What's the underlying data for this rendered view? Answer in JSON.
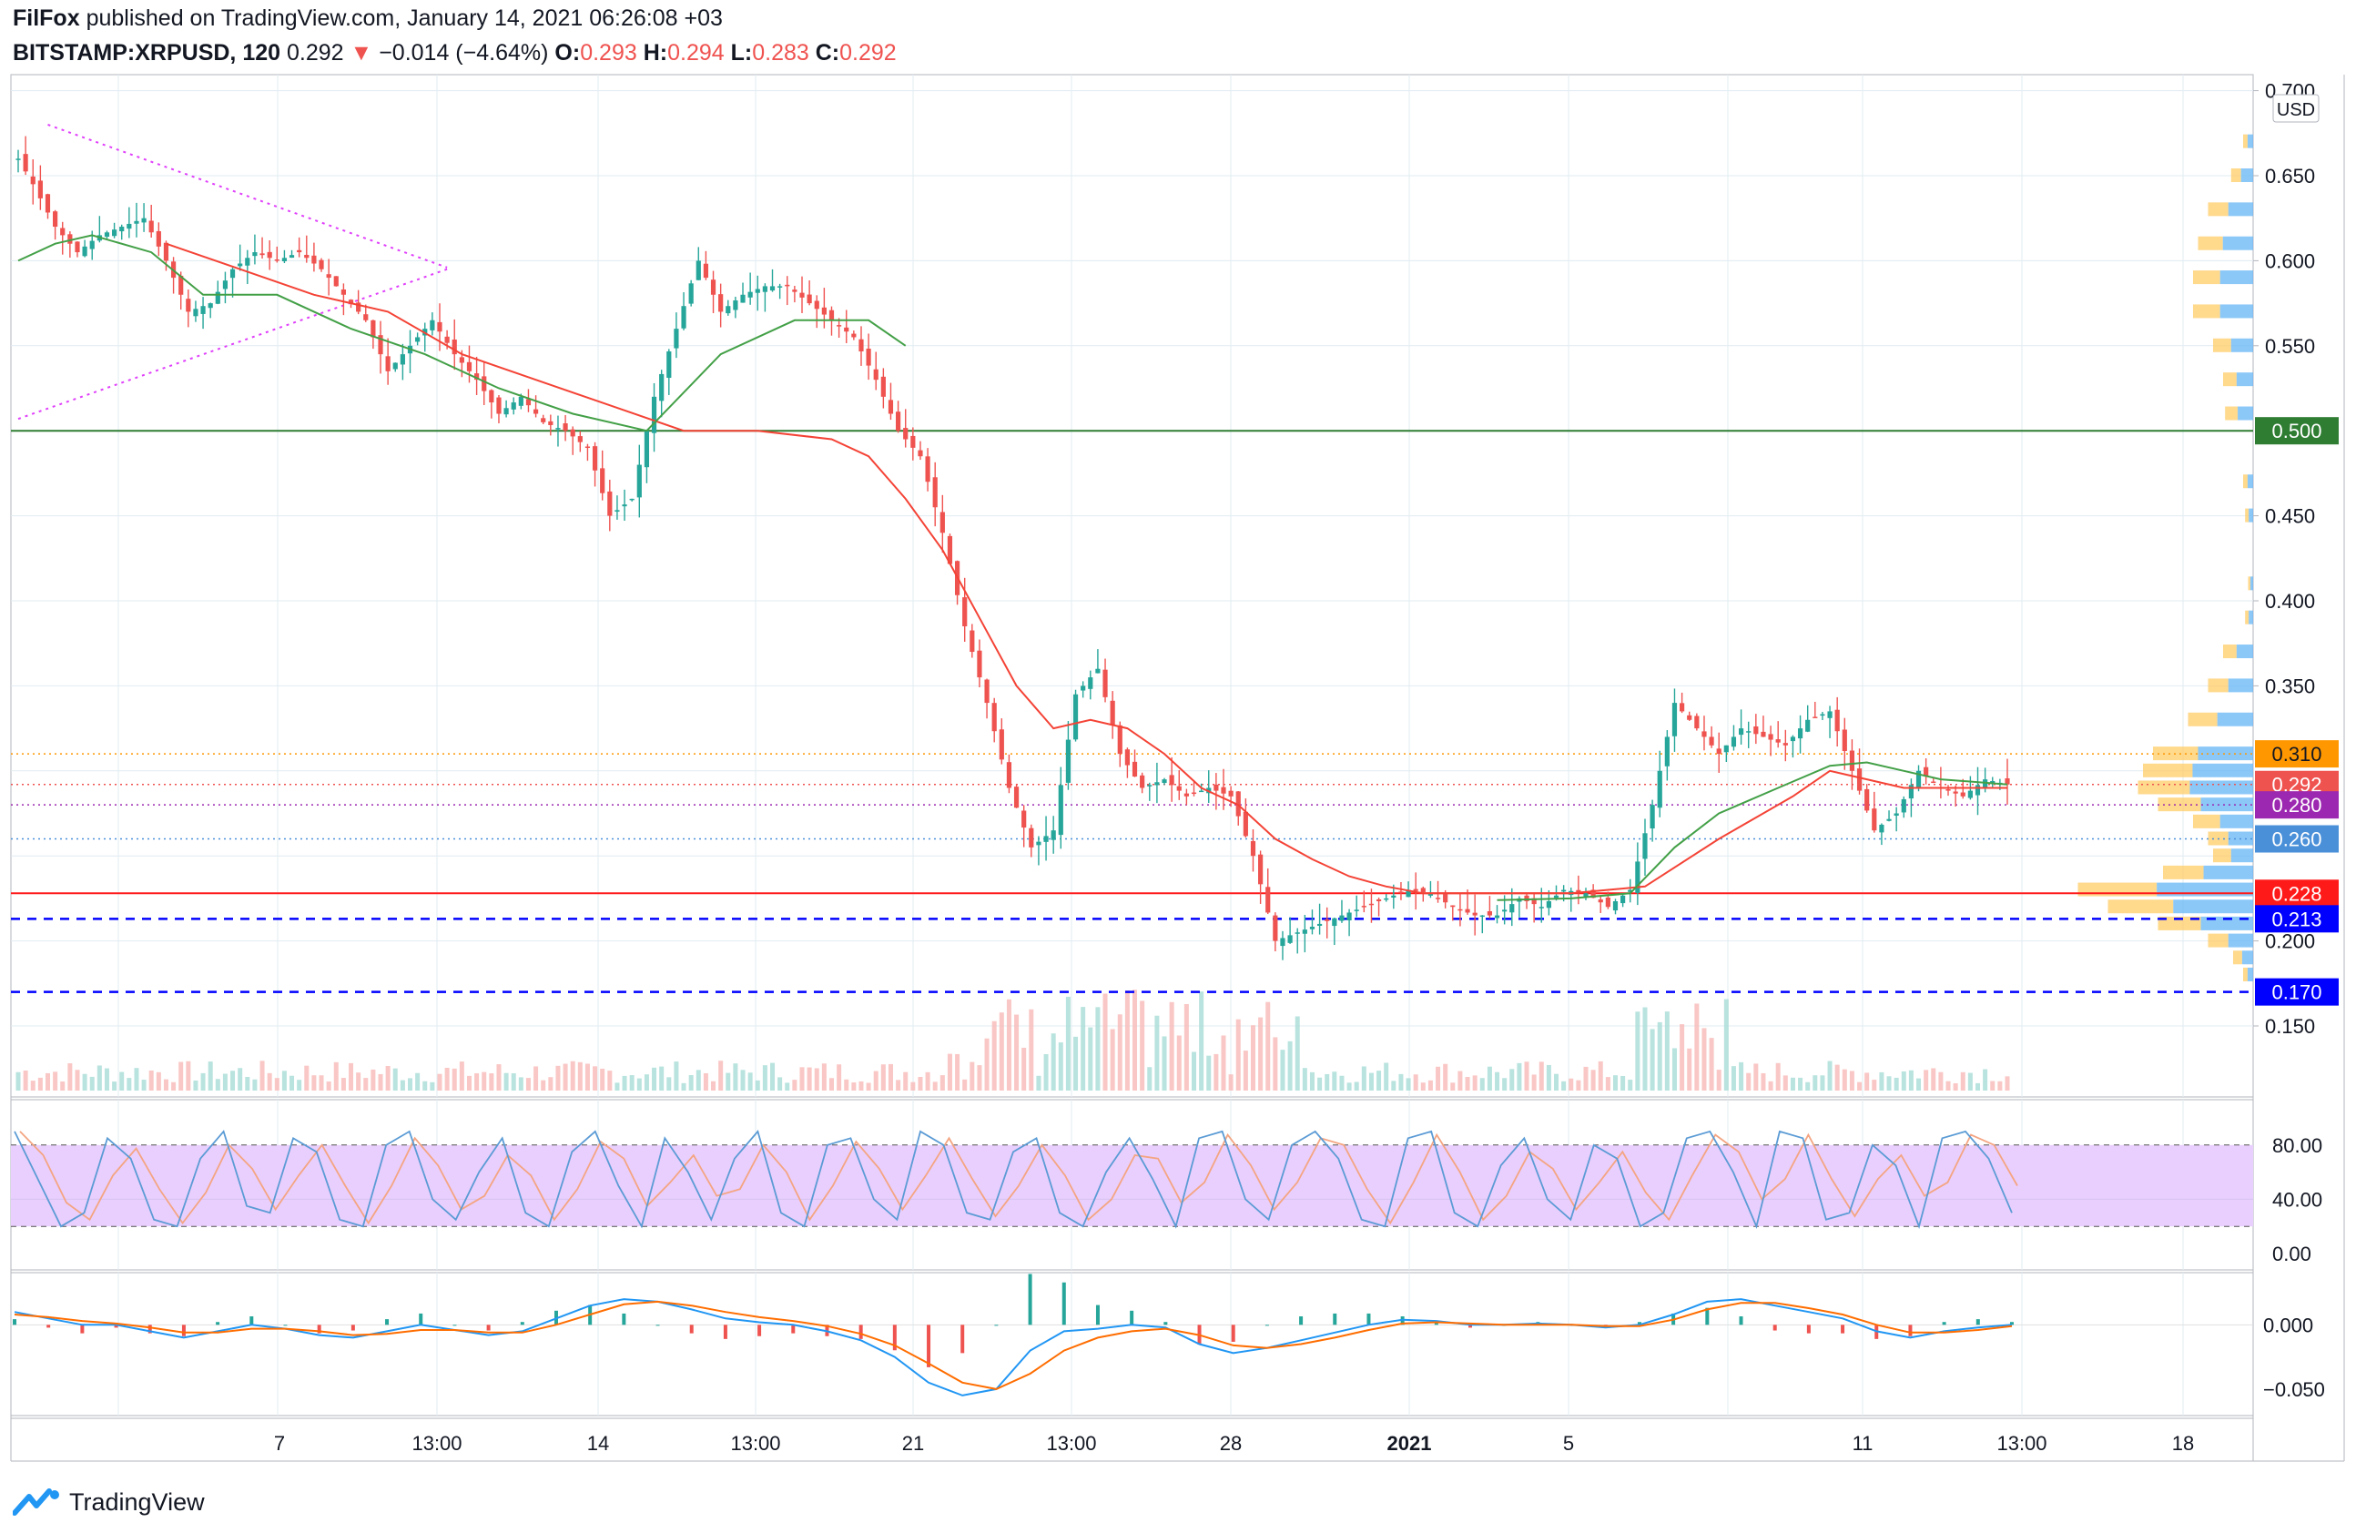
{
  "header": {
    "author": "FilFox",
    "published_text": "published on TradingView.com, January 14, 2021 06:26:08 +03",
    "symbol": "BITSTAMP:XRPUSD, 120",
    "last": "0.292",
    "arrow": "▼",
    "change": "−0.014 (−4.64%)",
    "o_label": "O:",
    "o_value": "0.293",
    "h_label": "H:",
    "h_value": "0.294",
    "l_label": "L:",
    "l_value": "0.283",
    "c_label": "C:",
    "c_value": "0.292"
  },
  "footer": {
    "brand": "TradingView",
    "logo_icon": "tradingview-logo-icon"
  },
  "chart_data": [
    {
      "type": "candlestick",
      "currency_label": "USD",
      "x_tick_labels": [
        "7",
        "13:00",
        "14",
        "13:00",
        "21",
        "13:00",
        "28",
        "2021",
        "5",
        "11",
        "13:00",
        "18"
      ],
      "y_ticks": [
        "0.700",
        "0.650",
        "0.600",
        "0.550",
        "0.450",
        "0.400",
        "0.350",
        "0.200",
        "0.150"
      ],
      "ylim": [
        0.1,
        0.7
      ],
      "price_labels": [
        {
          "text": "0.500",
          "value": 0.5,
          "color": "#2e7d32"
        },
        {
          "text": "0.310",
          "value": 0.31,
          "color": "#ff9800"
        },
        {
          "text": "0.292",
          "value": 0.292,
          "color": "#ef5350"
        },
        {
          "text": "0.280",
          "value": 0.28,
          "color": "#9c27b0"
        },
        {
          "text": "0.260",
          "value": 0.26,
          "color": "#4a90d9"
        },
        {
          "text": "0.228",
          "value": 0.228,
          "color": "#ff1a1a"
        },
        {
          "text": "0.213",
          "value": 0.213,
          "color": "#0000ff"
        },
        {
          "text": "0.170",
          "value": 0.17,
          "color": "#0000ff"
        }
      ],
      "close_path": [
        [
          0,
          0.66
        ],
        [
          2,
          0.645
        ],
        [
          5,
          0.62
        ],
        [
          8,
          0.605
        ],
        [
          11,
          0.615
        ],
        [
          14,
          0.62
        ],
        [
          17,
          0.625
        ],
        [
          20,
          0.6
        ],
        [
          23,
          0.57
        ],
        [
          26,
          0.575
        ],
        [
          29,
          0.595
        ],
        [
          32,
          0.605
        ],
        [
          35,
          0.6
        ],
        [
          38,
          0.605
        ],
        [
          41,
          0.595
        ],
        [
          44,
          0.58
        ],
        [
          47,
          0.565
        ],
        [
          50,
          0.535
        ],
        [
          53,
          0.55
        ],
        [
          56,
          0.565
        ],
        [
          59,
          0.545
        ],
        [
          62,
          0.53
        ],
        [
          65,
          0.51
        ],
        [
          68,
          0.52
        ],
        [
          71,
          0.505
        ],
        [
          74,
          0.5
        ],
        [
          77,
          0.49
        ],
        [
          80,
          0.45
        ],
        [
          83,
          0.46
        ],
        [
          86,
          0.52
        ],
        [
          89,
          0.56
        ],
        [
          92,
          0.6
        ],
        [
          95,
          0.57
        ],
        [
          98,
          0.58
        ],
        [
          101,
          0.585
        ],
        [
          104,
          0.585
        ],
        [
          107,
          0.575
        ],
        [
          110,
          0.565
        ],
        [
          113,
          0.555
        ],
        [
          116,
          0.53
        ],
        [
          119,
          0.5
        ],
        [
          122,
          0.485
        ],
        [
          125,
          0.44
        ],
        [
          128,
          0.385
        ],
        [
          131,
          0.34
        ],
        [
          134,
          0.29
        ],
        [
          137,
          0.255
        ],
        [
          140,
          0.265
        ],
        [
          143,
          0.345
        ],
        [
          146,
          0.36
        ],
        [
          149,
          0.31
        ],
        [
          152,
          0.29
        ],
        [
          155,
          0.295
        ],
        [
          158,
          0.285
        ],
        [
          161,
          0.29
        ],
        [
          164,
          0.285
        ],
        [
          167,
          0.25
        ],
        [
          170,
          0.2
        ],
        [
          173,
          0.205
        ],
        [
          176,
          0.21
        ],
        [
          179,
          0.215
        ],
        [
          182,
          0.22
        ],
        [
          185,
          0.225
        ],
        [
          188,
          0.23
        ],
        [
          191,
          0.228
        ],
        [
          194,
          0.22
        ],
        [
          197,
          0.215
        ],
        [
          200,
          0.215
        ],
        [
          203,
          0.225
        ],
        [
          206,
          0.22
        ],
        [
          209,
          0.23
        ],
        [
          212,
          0.228
        ],
        [
          215,
          0.22
        ],
        [
          218,
          0.23
        ],
        [
          221,
          0.28
        ],
        [
          224,
          0.34
        ],
        [
          227,
          0.325
        ],
        [
          230,
          0.31
        ],
        [
          233,
          0.325
        ],
        [
          236,
          0.32
        ],
        [
          239,
          0.315
        ],
        [
          242,
          0.33
        ],
        [
          245,
          0.335
        ],
        [
          248,
          0.3
        ],
        [
          251,
          0.265
        ],
        [
          254,
          0.275
        ],
        [
          257,
          0.3
        ],
        [
          260,
          0.29
        ],
        [
          263,
          0.285
        ],
        [
          266,
          0.295
        ],
        [
          269,
          0.292
        ]
      ],
      "ma_fast_path": [
        [
          0,
          0.605
        ],
        [
          10,
          0.615
        ],
        [
          20,
          0.61
        ],
        [
          30,
          0.595
        ],
        [
          40,
          0.585
        ],
        [
          50,
          0.57
        ],
        [
          60,
          0.55
        ],
        [
          70,
          0.52
        ],
        [
          80,
          0.5
        ],
        [
          90,
          0.53
        ],
        [
          100,
          0.555
        ],
        [
          110,
          0.565
        ],
        [
          120,
          0.545
        ],
        [
          130,
          0.48
        ]
      ],
      "ma_slow_path": [
        [
          20,
          0.61
        ],
        [
          30,
          0.595
        ],
        [
          40,
          0.58
        ],
        [
          50,
          0.57
        ],
        [
          60,
          0.545
        ],
        [
          70,
          0.53
        ],
        [
          80,
          0.515
        ],
        [
          90,
          0.5
        ],
        [
          100,
          0.5
        ],
        [
          110,
          0.495
        ],
        [
          115,
          0.485
        ],
        [
          120,
          0.46
        ],
        [
          125,
          0.43
        ],
        [
          130,
          0.39
        ],
        [
          135,
          0.35
        ],
        [
          140,
          0.325
        ],
        [
          145,
          0.33
        ],
        [
          150,
          0.325
        ],
        [
          155,
          0.31
        ],
        [
          160,
          0.29
        ],
        [
          165,
          0.28
        ],
        [
          170,
          0.26
        ],
        [
          175,
          0.248
        ],
        [
          180,
          0.238
        ],
        [
          185,
          0.232
        ],
        [
          190,
          0.228
        ],
        [
          200,
          0.228
        ],
        [
          210,
          0.228
        ],
        [
          220,
          0.232
        ],
        [
          230,
          0.26
        ],
        [
          240,
          0.285
        ],
        [
          245,
          0.3
        ],
        [
          250,
          0.295
        ],
        [
          255,
          0.29
        ],
        [
          260,
          0.29
        ],
        [
          269,
          0.29
        ]
      ],
      "ma_green_path": [
        [
          0,
          0.6
        ],
        [
          5,
          0.61
        ],
        [
          10,
          0.615
        ],
        [
          18,
          0.605
        ],
        [
          25,
          0.58
        ],
        [
          35,
          0.58
        ],
        [
          45,
          0.56
        ],
        [
          55,
          0.545
        ],
        [
          65,
          0.525
        ],
        [
          75,
          0.51
        ],
        [
          85,
          0.5
        ],
        [
          95,
          0.545
        ],
        [
          105,
          0.565
        ],
        [
          115,
          0.565
        ],
        [
          120,
          0.55
        ]
      ],
      "ma_green_late_path": [
        [
          200,
          0.224
        ],
        [
          210,
          0.225
        ],
        [
          218,
          0.228
        ],
        [
          224,
          0.255
        ],
        [
          230,
          0.275
        ],
        [
          238,
          0.29
        ],
        [
          245,
          0.303
        ],
        [
          250,
          0.305
        ],
        [
          255,
          0.3
        ],
        [
          260,
          0.295
        ],
        [
          269,
          0.292
        ]
      ],
      "trendline_upper": [
        [
          4,
          0.68
        ],
        [
          58,
          0.596
        ]
      ],
      "trendline_lower": [
        [
          0,
          0.507
        ],
        [
          58,
          0.595
        ]
      ],
      "hlines": [
        {
          "value": 0.5,
          "color": "#2e7d32",
          "style": "solid"
        },
        {
          "value": 0.31,
          "color": "#ff9800",
          "style": "dotted"
        },
        {
          "value": 0.292,
          "color": "#ef5350",
          "style": "dotted"
        },
        {
          "value": 0.28,
          "color": "#9c27b0",
          "style": "dotted"
        },
        {
          "value": 0.26,
          "color": "#4a90d9",
          "style": "dotted"
        },
        {
          "value": 0.228,
          "color": "#ff1a1a",
          "style": "solid"
        },
        {
          "value": 0.213,
          "color": "#0000ff",
          "style": "dashed"
        },
        {
          "value": 0.17,
          "color": "#0000ff",
          "style": "dashed"
        }
      ],
      "volume_profile": [
        [
          0.67,
          10
        ],
        [
          0.65,
          22
        ],
        [
          0.63,
          45
        ],
        [
          0.61,
          55
        ],
        [
          0.59,
          60
        ],
        [
          0.57,
          60
        ],
        [
          0.55,
          40
        ],
        [
          0.53,
          30
        ],
        [
          0.51,
          28
        ],
        [
          0.47,
          10
        ],
        [
          0.45,
          8
        ],
        [
          0.41,
          5
        ],
        [
          0.39,
          8
        ],
        [
          0.37,
          30
        ],
        [
          0.35,
          45
        ],
        [
          0.33,
          65
        ],
        [
          0.31,
          100
        ],
        [
          0.3,
          110
        ],
        [
          0.29,
          115
        ],
        [
          0.28,
          95
        ],
        [
          0.27,
          60
        ],
        [
          0.26,
          45
        ],
        [
          0.25,
          40
        ],
        [
          0.24,
          90
        ],
        [
          0.23,
          175
        ],
        [
          0.22,
          145
        ],
        [
          0.21,
          95
        ],
        [
          0.2,
          45
        ],
        [
          0.19,
          20
        ],
        [
          0.18,
          10
        ]
      ]
    },
    {
      "type": "line",
      "name_hint": "stochastic",
      "y_ticks": [
        "80.00",
        "40.00",
        "0.00"
      ],
      "ylim": [
        0,
        100
      ],
      "band": [
        20,
        80
      ],
      "values": [
        90,
        55,
        20,
        30,
        85,
        70,
        25,
        20,
        70,
        90,
        35,
        30,
        85,
        75,
        25,
        20,
        80,
        90,
        40,
        25,
        60,
        85,
        30,
        20,
        75,
        90,
        50,
        20,
        85,
        60,
        25,
        70,
        90,
        30,
        20,
        80,
        85,
        40,
        25,
        90,
        80,
        30,
        25,
        75,
        85,
        30,
        20,
        60,
        85,
        55,
        20,
        85,
        90,
        40,
        25,
        80,
        90,
        70,
        25,
        20,
        85,
        90,
        30,
        20,
        65,
        85,
        40,
        25,
        80,
        70,
        20,
        30,
        85,
        90,
        60,
        20,
        90,
        85,
        25,
        30,
        80,
        65,
        20,
        85,
        90,
        70,
        30
      ]
    },
    {
      "type": "line",
      "name_hint": "macd",
      "y_ticks": [
        "0.000",
        "−0.050"
      ],
      "ylim": [
        -0.06,
        0.03
      ],
      "macd": [
        0.01,
        0.005,
        0.0,
        0.0,
        -0.005,
        -0.01,
        -0.005,
        0.0,
        -0.003,
        -0.008,
        -0.01,
        -0.005,
        0.0,
        -0.004,
        -0.008,
        -0.005,
        0.005,
        0.015,
        0.02,
        0.018,
        0.012,
        0.005,
        0.002,
        0.0,
        -0.005,
        -0.012,
        -0.025,
        -0.045,
        -0.055,
        -0.05,
        -0.02,
        -0.005,
        -0.003,
        0.0,
        -0.002,
        -0.015,
        -0.022,
        -0.018,
        -0.012,
        -0.006,
        0.0,
        0.004,
        0.003,
        0.0,
        0.0,
        0.001,
        0.0,
        -0.002,
        0.0,
        0.008,
        0.018,
        0.02,
        0.015,
        0.01,
        0.005,
        -0.005,
        -0.01,
        -0.005,
        -0.002,
        0.0
      ],
      "signal": [
        0.008,
        0.006,
        0.003,
        0.001,
        -0.002,
        -0.006,
        -0.006,
        -0.003,
        -0.003,
        -0.005,
        -0.008,
        -0.007,
        -0.004,
        -0.004,
        -0.006,
        -0.006,
        0.0,
        0.008,
        0.016,
        0.018,
        0.015,
        0.01,
        0.006,
        0.003,
        -0.001,
        -0.007,
        -0.016,
        -0.03,
        -0.045,
        -0.05,
        -0.038,
        -0.02,
        -0.01,
        -0.005,
        -0.003,
        -0.008,
        -0.016,
        -0.018,
        -0.015,
        -0.01,
        -0.004,
        0.001,
        0.002,
        0.001,
        0.0,
        0.0,
        0.0,
        -0.001,
        -0.001,
        0.004,
        0.012,
        0.017,
        0.017,
        0.013,
        0.008,
        0.0,
        -0.006,
        -0.006,
        -0.004,
        -0.001
      ]
    }
  ],
  "colors": {
    "up": "#26a69a",
    "down": "#ef5350",
    "grid": "#e1ecf2",
    "ma_red": "#f44336",
    "ma_green": "#43a047",
    "stoch_band": "#e9cffd",
    "k_line": "#5b9bd5",
    "d_line": "#f4a582",
    "macd": "#2196f3",
    "signal": "#ff6d00"
  }
}
